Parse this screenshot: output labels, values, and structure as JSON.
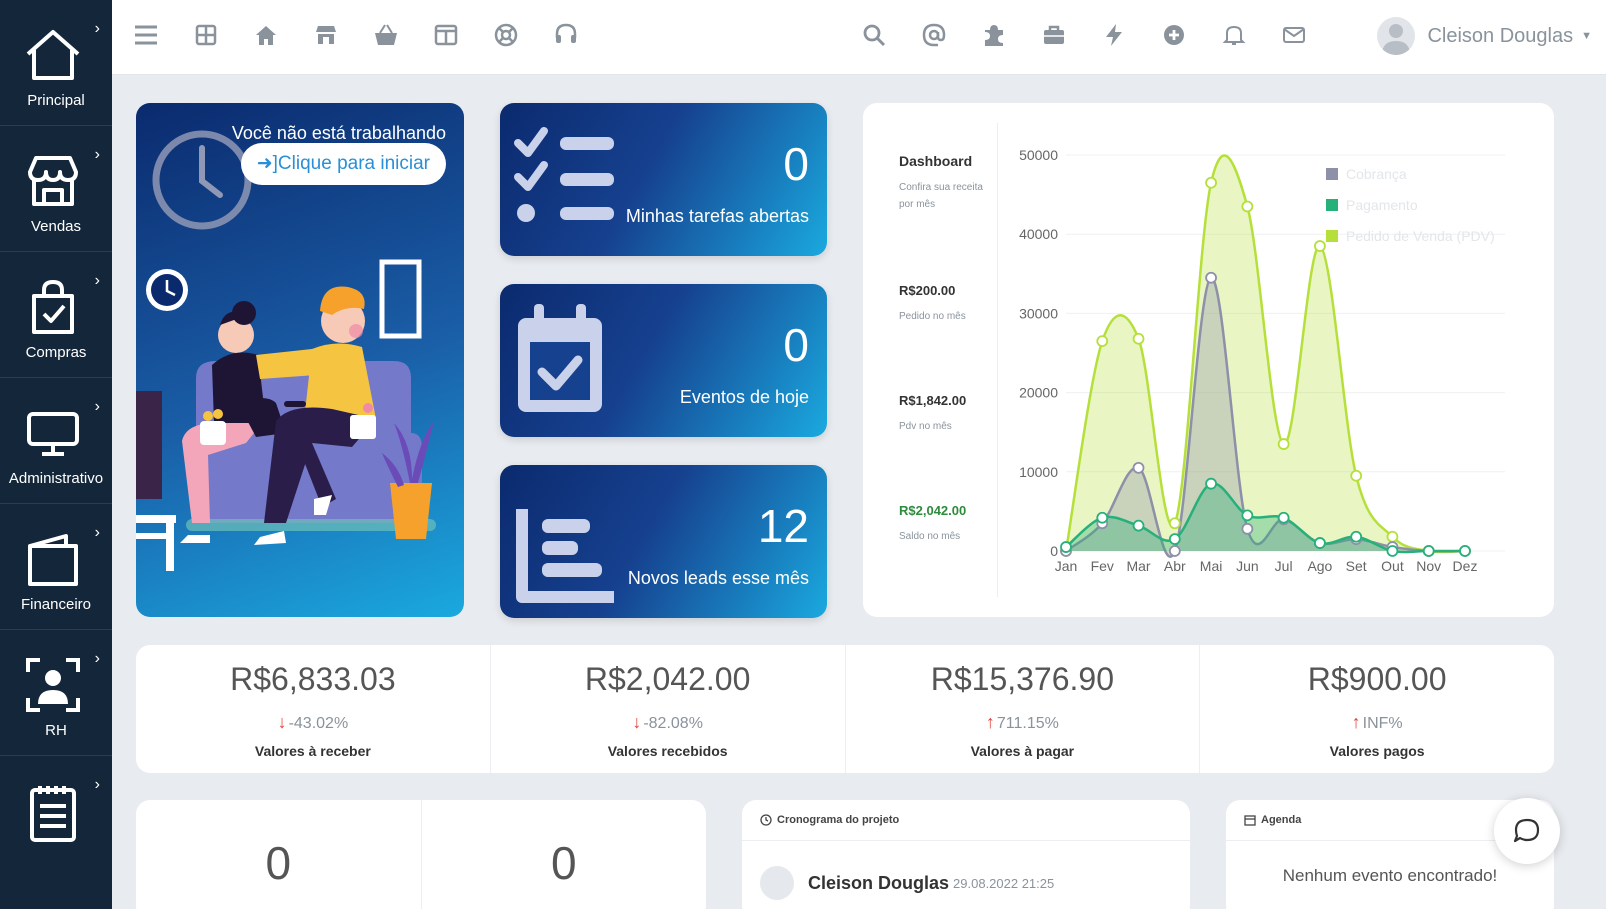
{
  "sidebar": {
    "items": [
      {
        "label": "Principal",
        "icon": "home-icon"
      },
      {
        "label": "Vendas",
        "icon": "store-icon"
      },
      {
        "label": "Compras",
        "icon": "shopping-bag-icon"
      },
      {
        "label": "Administrativo",
        "icon": "monitor-icon"
      },
      {
        "label": "Financeiro",
        "icon": "wallet-icon"
      },
      {
        "label": "RH",
        "icon": "user-frame-icon"
      },
      {
        "label": "",
        "icon": "notepad-icon"
      }
    ]
  },
  "topbar": {
    "left_icons": [
      "menu-icon",
      "grid-icon",
      "home-icon",
      "store-icon",
      "basket-icon",
      "columns-icon",
      "lifebuoy-icon",
      "headset-icon"
    ],
    "right_icons": [
      "search-icon",
      "at-icon",
      "puzzle-icon",
      "briefcase-icon",
      "bolt-icon",
      "plus-circle-icon",
      "bell-icon",
      "mail-icon"
    ],
    "user_name": "Cleison Douglas"
  },
  "welcome": {
    "message": "Você não está trabalhando",
    "button_label": "Clique para iniciar"
  },
  "stats": [
    {
      "value": "0",
      "caption": "Minhas tarefas abertas",
      "icon": "checklist-icon"
    },
    {
      "value": "0",
      "caption": "Eventos de hoje",
      "icon": "calendar-check-icon"
    },
    {
      "value": "12",
      "caption": "Novos leads esse mês",
      "icon": "bar-list-icon"
    }
  ],
  "dashboard": {
    "title": "Dashboard",
    "subtitle": "Confira sua receita por mês",
    "kpis": [
      {
        "value": "R$200.00",
        "label": "Pedido no mês",
        "color": "#333333"
      },
      {
        "value": "R$1,842.00",
        "label": "Pdv no mês",
        "color": "#333333"
      },
      {
        "value": "R$2,042.00",
        "label": "Saldo no mês",
        "color": "#2e8b3e"
      }
    ]
  },
  "chart_data": {
    "type": "area",
    "categories": [
      "Jan",
      "Fev",
      "Mar",
      "Abr",
      "Mai",
      "Jun",
      "Jul",
      "Ago",
      "Set",
      "Out",
      "Nov",
      "Dez"
    ],
    "ylim": [
      0,
      50000
    ],
    "yticks": [
      "0",
      "10000",
      "20000",
      "30000",
      "40000",
      "50000"
    ],
    "legend_position": "top-right",
    "series": [
      {
        "name": "Pedido de Venda (PDV)",
        "color": "#b5e03a",
        "values": [
          0,
          26500,
          26800,
          3500,
          46500,
          43500,
          13500,
          38500,
          9500,
          1800,
          0,
          0
        ]
      },
      {
        "name": "Cobrança",
        "color": "#8e8fa8",
        "values": [
          0,
          3500,
          10500,
          0,
          34500,
          2800,
          4000,
          1000,
          1500,
          500,
          0,
          0
        ]
      },
      {
        "name": "Pagamento",
        "color": "#26b07a",
        "values": [
          500,
          4200,
          3200,
          1500,
          8500,
          4500,
          4200,
          1000,
          1800,
          0,
          0,
          0
        ]
      }
    ]
  },
  "totals": [
    {
      "amount": "R$6,833.03",
      "change": "-43.02%",
      "direction": "down",
      "label": "Valores à receber"
    },
    {
      "amount": "R$2,042.00",
      "change": "-82.08%",
      "direction": "down",
      "label": "Valores recebidos"
    },
    {
      "amount": "R$15,376.90",
      "change": "711.15%",
      "direction": "up",
      "label": "Valores à pagar"
    },
    {
      "amount": "R$900.00",
      "change": "INF%",
      "direction": "up",
      "label": "Valores pagos"
    }
  ],
  "counters": [
    "0",
    "0"
  ],
  "timeline": {
    "title": "Cronograma do projeto",
    "entry_name": "Cleison Douglas",
    "entry_date": "29.08.2022 21:25"
  },
  "agenda": {
    "title": "Agenda",
    "empty_text": "Nenhum evento encontrado!"
  },
  "colors": {
    "sidebar": "#14273a",
    "down": "#e0443c",
    "up": "#e0443c"
  }
}
